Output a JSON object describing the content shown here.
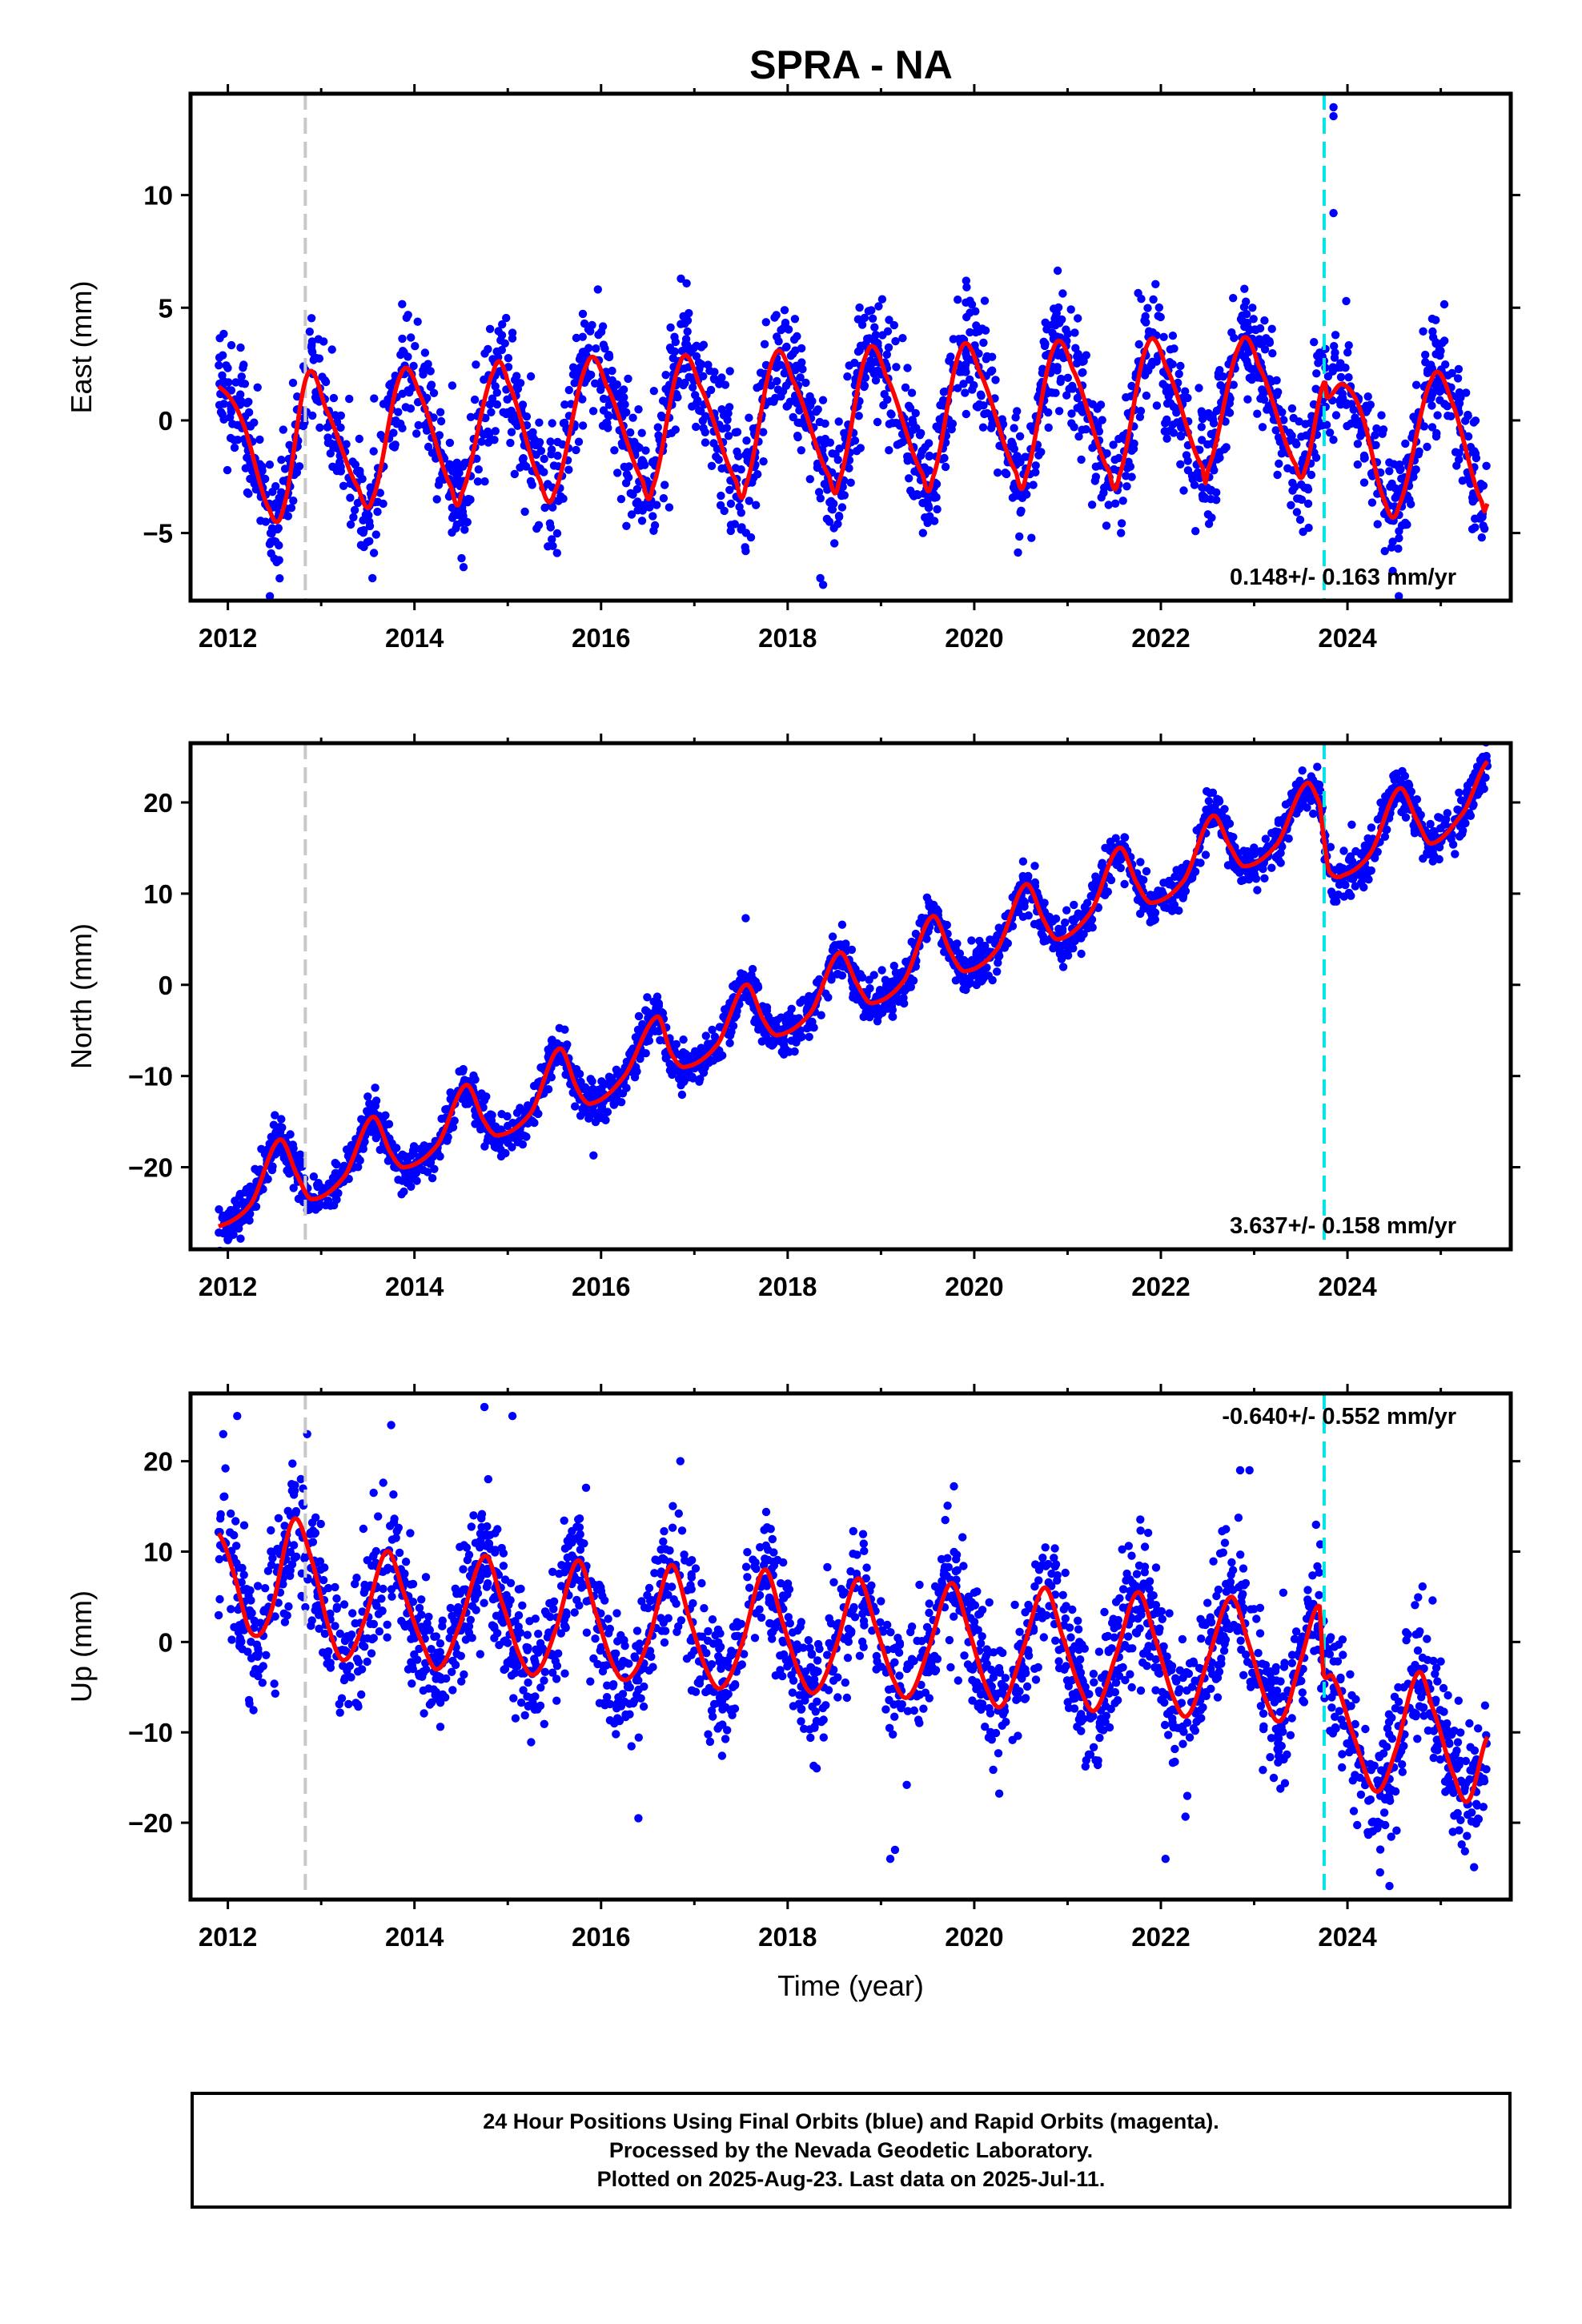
{
  "page": {
    "title": "SPRA - NA"
  },
  "chart_data": [
    {
      "type": "scatter",
      "component": "East",
      "ylabel": "East (mm)",
      "xlabel": "",
      "xlim": [
        2011.6,
        2025.75
      ],
      "ylim": [
        -8,
        14.5
      ],
      "xticks": [
        2012,
        2014,
        2016,
        2018,
        2020,
        2022,
        2024
      ],
      "yticks": [
        -5,
        0,
        5,
        10
      ],
      "rate_text": "0.148+/- 0.163 mm/yr",
      "rate_position": "bottom-right",
      "model_anchors": [
        [
          2011.9,
          1.5
        ],
        [
          2012.15,
          0.0
        ],
        [
          2012.45,
          -4.0
        ],
        [
          2012.6,
          -3.8
        ],
        [
          2012.85,
          2.0
        ],
        [
          2013.05,
          0.5
        ],
        [
          2013.4,
          -3.0
        ],
        [
          2013.55,
          -3.5
        ],
        [
          2013.85,
          2.0
        ],
        [
          2014.05,
          1.2
        ],
        [
          2014.4,
          -3.0
        ],
        [
          2014.5,
          -3.3
        ],
        [
          2014.85,
          2.2
        ],
        [
          2015.0,
          1.7
        ],
        [
          2015.35,
          -2.7
        ],
        [
          2015.5,
          -3.2
        ],
        [
          2015.85,
          2.5
        ],
        [
          2016.05,
          1.6
        ],
        [
          2016.45,
          -2.7
        ],
        [
          2016.55,
          -3.0
        ],
        [
          2016.85,
          2.6
        ],
        [
          2017.05,
          1.6
        ],
        [
          2017.45,
          -2.7
        ],
        [
          2017.55,
          -2.9
        ],
        [
          2017.85,
          2.8
        ],
        [
          2018.05,
          1.8
        ],
        [
          2018.45,
          -2.5
        ],
        [
          2018.55,
          -2.7
        ],
        [
          2018.85,
          3.0
        ],
        [
          2019.05,
          2.0
        ],
        [
          2019.45,
          -2.4
        ],
        [
          2019.55,
          -2.6
        ],
        [
          2019.85,
          3.1
        ],
        [
          2020.05,
          2.2
        ],
        [
          2020.45,
          -2.3
        ],
        [
          2020.55,
          -2.5
        ],
        [
          2020.85,
          3.2
        ],
        [
          2021.05,
          2.3
        ],
        [
          2021.45,
          -2.3
        ],
        [
          2021.55,
          -2.5
        ],
        [
          2021.85,
          3.3
        ],
        [
          2022.05,
          2.4
        ],
        [
          2022.45,
          -2.1
        ],
        [
          2022.5,
          -2.2
        ],
        [
          2022.85,
          3.4
        ],
        [
          2023.05,
          2.4
        ],
        [
          2023.45,
          -2.0
        ],
        [
          2023.55,
          -2.1
        ],
        [
          2023.75,
          1.7
        ],
        [
          2023.78,
          1.0
        ],
        [
          2023.95,
          1.6
        ],
        [
          2024.15,
          0.3
        ],
        [
          2024.4,
          -3.6
        ],
        [
          2024.55,
          -3.8
        ],
        [
          2024.9,
          1.8
        ],
        [
          2025.1,
          1.0
        ],
        [
          2025.45,
          -3.7
        ],
        [
          2025.5,
          -3.7
        ]
      ],
      "scatter_spread": 1.3,
      "outliers": [
        [
          2023.85,
          13.9
        ],
        [
          2023.85,
          13.5
        ],
        [
          2023.85,
          9.2
        ],
        [
          2018.35,
          -7.0
        ],
        [
          2018.38,
          -7.3
        ],
        [
          2012.45,
          -7.8
        ],
        [
          2012.55,
          -6.2
        ],
        [
          2013.55,
          -7.0
        ],
        [
          2017.55,
          -5.8
        ],
        [
          2019.45,
          -5.0
        ],
        [
          2024.55,
          -7.8
        ]
      ],
      "events": [
        {
          "x": 2012.83,
          "color": "#c8c8c8",
          "kind": "equipment"
        },
        {
          "x": 2023.75,
          "color": "#00e5e5",
          "kind": "earthquake"
        }
      ]
    },
    {
      "type": "scatter",
      "component": "North",
      "ylabel": "North (mm)",
      "xlabel": "",
      "xlim": [
        2011.6,
        2025.75
      ],
      "ylim": [
        -29,
        26.5
      ],
      "xticks": [
        2012,
        2014,
        2016,
        2018,
        2020,
        2022,
        2024
      ],
      "yticks": [
        -20,
        -10,
        0,
        10,
        20
      ],
      "rate_text": "3.637+/- 0.158 mm/yr",
      "rate_position": "bottom-right",
      "model_anchors": [
        [
          2011.9,
          -26.5
        ],
        [
          2012.25,
          -24.0
        ],
        [
          2012.55,
          -17.0
        ],
        [
          2012.75,
          -21.0
        ],
        [
          2012.9,
          -23.5
        ],
        [
          2013.25,
          -21.0
        ],
        [
          2013.55,
          -14.5
        ],
        [
          2013.75,
          -18.5
        ],
        [
          2013.9,
          -20.0
        ],
        [
          2014.25,
          -17.5
        ],
        [
          2014.55,
          -11.0
        ],
        [
          2014.75,
          -15.0
        ],
        [
          2014.9,
          -16.5
        ],
        [
          2015.25,
          -14.0
        ],
        [
          2015.55,
          -7.0
        ],
        [
          2015.75,
          -11.5
        ],
        [
          2015.9,
          -13.0
        ],
        [
          2016.25,
          -10.0
        ],
        [
          2016.6,
          -3.5
        ],
        [
          2016.75,
          -7.5
        ],
        [
          2016.9,
          -9.0
        ],
        [
          2017.25,
          -6.5
        ],
        [
          2017.55,
          0.0
        ],
        [
          2017.75,
          -4.0
        ],
        [
          2017.9,
          -5.5
        ],
        [
          2018.25,
          -3.0
        ],
        [
          2018.55,
          3.5
        ],
        [
          2018.75,
          0.0
        ],
        [
          2018.9,
          -2.0
        ],
        [
          2019.25,
          0.5
        ],
        [
          2019.55,
          7.5
        ],
        [
          2019.75,
          3.5
        ],
        [
          2019.9,
          1.5
        ],
        [
          2020.25,
          4.0
        ],
        [
          2020.55,
          11.0
        ],
        [
          2020.75,
          7.0
        ],
        [
          2020.9,
          5.0
        ],
        [
          2021.25,
          8.0
        ],
        [
          2021.55,
          15.0
        ],
        [
          2021.75,
          11.0
        ],
        [
          2021.9,
          9.0
        ],
        [
          2022.25,
          11.5
        ],
        [
          2022.55,
          18.5
        ],
        [
          2022.75,
          15.0
        ],
        [
          2022.9,
          13.0
        ],
        [
          2023.25,
          15.5
        ],
        [
          2023.55,
          22.0
        ],
        [
          2023.7,
          20.0
        ],
        [
          2023.74,
          16.5
        ],
        [
          2023.8,
          12.5
        ],
        [
          2023.95,
          12.0
        ],
        [
          2024.25,
          14.5
        ],
        [
          2024.55,
          21.5
        ],
        [
          2024.75,
          18.0
        ],
        [
          2024.9,
          15.5
        ],
        [
          2025.25,
          19.0
        ],
        [
          2025.5,
          24.5
        ]
      ],
      "scatter_spread": 1.2,
      "outliers": [
        [
          2017.55,
          7.3
        ],
        [
          2012.0,
          -28.0
        ],
        [
          2025.45,
          25.0
        ]
      ],
      "events": [
        {
          "x": 2012.83,
          "color": "#c8c8c8",
          "kind": "equipment"
        },
        {
          "x": 2023.75,
          "color": "#00e5e5",
          "kind": "earthquake"
        }
      ]
    },
    {
      "type": "scatter",
      "component": "Up",
      "ylabel": "Up (mm)",
      "xlabel": "Time (year)",
      "xlim": [
        2011.6,
        2025.75
      ],
      "ylim": [
        -28.5,
        27.5
      ],
      "xticks": [
        2012,
        2014,
        2016,
        2018,
        2020,
        2022,
        2024
      ],
      "yticks": [
        -20,
        -10,
        0,
        10,
        20
      ],
      "rate_text": "-0.640+/- 0.552 mm/yr",
      "rate_position": "top-right",
      "model_anchors": [
        [
          2011.9,
          12.0
        ],
        [
          2012.05,
          8.0
        ],
        [
          2012.25,
          1.0
        ],
        [
          2012.45,
          3.0
        ],
        [
          2012.7,
          13.5
        ],
        [
          2012.9,
          9.0
        ],
        [
          2013.1,
          1.0
        ],
        [
          2013.25,
          -2.0
        ],
        [
          2013.45,
          2.0
        ],
        [
          2013.7,
          10.0
        ],
        [
          2013.9,
          5.0
        ],
        [
          2014.1,
          -0.5
        ],
        [
          2014.25,
          -3.0
        ],
        [
          2014.45,
          1.0
        ],
        [
          2014.75,
          9.5
        ],
        [
          2014.95,
          4.0
        ],
        [
          2015.15,
          -2.0
        ],
        [
          2015.3,
          -3.5
        ],
        [
          2015.5,
          1.0
        ],
        [
          2015.75,
          9.0
        ],
        [
          2015.95,
          3.0
        ],
        [
          2016.15,
          -3.0
        ],
        [
          2016.3,
          -4.0
        ],
        [
          2016.5,
          0.0
        ],
        [
          2016.75,
          8.5
        ],
        [
          2016.95,
          2.5
        ],
        [
          2017.15,
          -3.5
        ],
        [
          2017.3,
          -5.0
        ],
        [
          2017.5,
          -0.5
        ],
        [
          2017.75,
          8.0
        ],
        [
          2017.95,
          2.0
        ],
        [
          2018.15,
          -4.0
        ],
        [
          2018.3,
          -5.5
        ],
        [
          2018.5,
          -1.0
        ],
        [
          2018.75,
          7.0
        ],
        [
          2018.95,
          1.5
        ],
        [
          2019.15,
          -4.5
        ],
        [
          2019.3,
          -6.0
        ],
        [
          2019.5,
          -1.0
        ],
        [
          2019.75,
          6.5
        ],
        [
          2019.95,
          1.0
        ],
        [
          2020.15,
          -5.5
        ],
        [
          2020.3,
          -7.0
        ],
        [
          2020.5,
          -1.5
        ],
        [
          2020.75,
          6.0
        ],
        [
          2020.95,
          0.5
        ],
        [
          2021.15,
          -5.5
        ],
        [
          2021.3,
          -7.5
        ],
        [
          2021.5,
          -2.0
        ],
        [
          2021.75,
          5.5
        ],
        [
          2021.95,
          0.0
        ],
        [
          2022.15,
          -6.5
        ],
        [
          2022.3,
          -8.0
        ],
        [
          2022.5,
          -2.0
        ],
        [
          2022.75,
          5.0
        ],
        [
          2022.95,
          -0.5
        ],
        [
          2023.15,
          -7.0
        ],
        [
          2023.3,
          -8.5
        ],
        [
          2023.5,
          -2.0
        ],
        [
          2023.7,
          4.0
        ],
        [
          2023.74,
          -3.5
        ],
        [
          2023.85,
          -4.0
        ],
        [
          2024.05,
          -10.0
        ],
        [
          2024.3,
          -16.5
        ],
        [
          2024.5,
          -12.5
        ],
        [
          2024.75,
          -3.5
        ],
        [
          2024.9,
          -7.0
        ],
        [
          2025.15,
          -15.0
        ],
        [
          2025.3,
          -17.5
        ],
        [
          2025.5,
          -10.5
        ]
      ],
      "scatter_spread": 3.6,
      "outliers": [
        [
          2011.95,
          23.0
        ],
        [
          2012.1,
          25.0
        ],
        [
          2012.85,
          23.0
        ],
        [
          2013.75,
          24.0
        ],
        [
          2014.75,
          26.0
        ],
        [
          2015.05,
          25.0
        ],
        [
          2016.4,
          -19.5
        ],
        [
          2019.15,
          -23.0
        ],
        [
          2019.1,
          -24.0
        ],
        [
          2022.05,
          -24.0
        ],
        [
          2024.35,
          -25.5
        ],
        [
          2024.45,
          -27.0
        ],
        [
          2022.85,
          19.0
        ],
        [
          2022.95,
          19.0
        ],
        [
          2016.85,
          20.0
        ]
      ],
      "events": [
        {
          "x": 2012.83,
          "color": "#c8c8c8",
          "kind": "equipment"
        },
        {
          "x": 2023.75,
          "color": "#00e5e5",
          "kind": "earthquake"
        }
      ]
    }
  ],
  "colors": {
    "points": "#0000ff",
    "model": "#ff0000",
    "equipment_change": "#c8c8c8",
    "earthquake": "#00e5e5",
    "frame": "#000000"
  },
  "footer": {
    "line1": "24 Hour Positions Using Final Orbits (blue) and Rapid Orbits (magenta).",
    "line2": "Processed by the Nevada Geodetic Laboratory.",
    "line3": "Plotted on 2025-Aug-23. Last data on 2025-Jul-11."
  }
}
